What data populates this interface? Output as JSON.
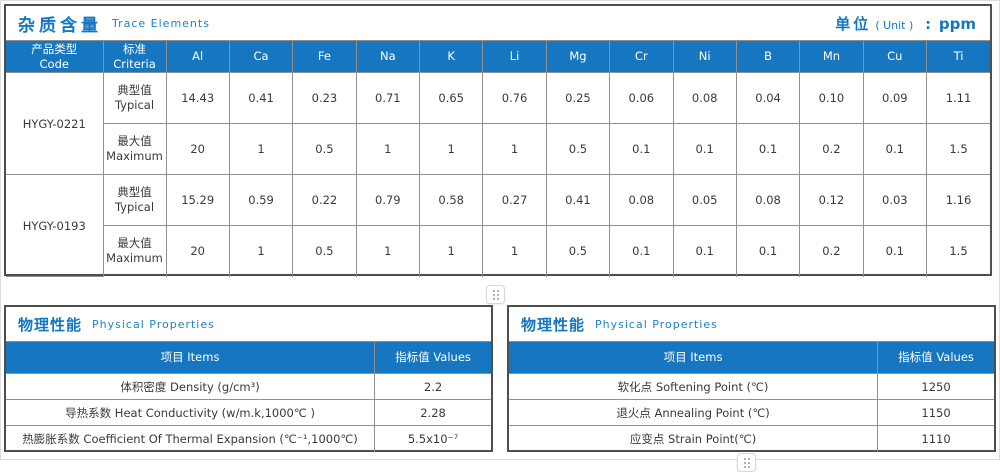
{
  "colors": {
    "accent": "#1677c0",
    "table_header_bg": "#1677c0",
    "section_border": "#4e4e4e",
    "cell_border": "#8f8f8f",
    "text": "#333333"
  },
  "trace": {
    "title_zh": "杂质含量",
    "title_en": "Trace Elements",
    "unit_zh": "单位",
    "unit_hint": "( Unit )",
    "unit_colon": ":",
    "unit_value": "ppm",
    "col_code_zh": "产品类型",
    "col_code_en": "Code",
    "col_criteria_zh": "标准",
    "col_criteria_en": "Criteria",
    "elements": [
      "Al",
      "Ca",
      "Fe",
      "Na",
      "K",
      "Li",
      "Mg",
      "Cr",
      "Ni",
      "B",
      "Mn",
      "Cu",
      "Ti"
    ],
    "products": [
      {
        "code": "HYGY-0221",
        "rows": [
          {
            "type_zh": "典型值",
            "type_en": "Typical",
            "values": [
              "14.43",
              "0.41",
              "0.23",
              "0.71",
              "0.65",
              "0.76",
              "0.25",
              "0.06",
              "0.08",
              "0.04",
              "0.10",
              "0.09",
              "1.11"
            ]
          },
          {
            "type_zh": "最大值",
            "type_en": "Maximum",
            "values": [
              "20",
              "1",
              "0.5",
              "1",
              "1",
              "1",
              "0.5",
              "0.1",
              "0.1",
              "0.1",
              "0.2",
              "0.1",
              "1.5"
            ]
          }
        ]
      },
      {
        "code": "HYGY-0193",
        "rows": [
          {
            "type_zh": "典型值",
            "type_en": "Typical",
            "values": [
              "15.29",
              "0.59",
              "0.22",
              "0.79",
              "0.58",
              "0.27",
              "0.41",
              "0.08",
              "0.05",
              "0.08",
              "0.12",
              "0.03",
              "1.16"
            ]
          },
          {
            "type_zh": "最大值",
            "type_en": "Maximum",
            "values": [
              "20",
              "1",
              "0.5",
              "1",
              "1",
              "1",
              "0.5",
              "0.1",
              "0.1",
              "0.1",
              "0.2",
              "0.1",
              "1.5"
            ]
          }
        ]
      }
    ]
  },
  "physical_left": {
    "title_zh": "物理性能",
    "title_en": "Physical Properties",
    "col_item_zh": "项目",
    "col_item_en": "Items",
    "col_value_zh": "指标值",
    "col_value_en": "Values",
    "rows": [
      {
        "item": "体积密度 Density (g/cm³)",
        "value": "2.2"
      },
      {
        "item": "导热系数 Heat Conductivity (w/m.k,1000℃ )",
        "value": "2.28"
      },
      {
        "item": "热膨胀系数 Coefficient Of Thermal Expansion (℃⁻¹,1000℃)",
        "value": "5.5x10⁻⁷"
      }
    ]
  },
  "physical_right": {
    "title_zh": "物理性能",
    "title_en": "Physical Properties",
    "col_item_zh": "项目",
    "col_item_en": "Items",
    "col_value_zh": "指标值",
    "col_value_en": "Values",
    "rows": [
      {
        "item": "软化点 Softening Point (℃)",
        "value": "1250"
      },
      {
        "item": "退火点 Annealing Point (℃)",
        "value": "1150"
      },
      {
        "item": "应变点 Strain Point(℃)",
        "value": "1110"
      }
    ]
  }
}
